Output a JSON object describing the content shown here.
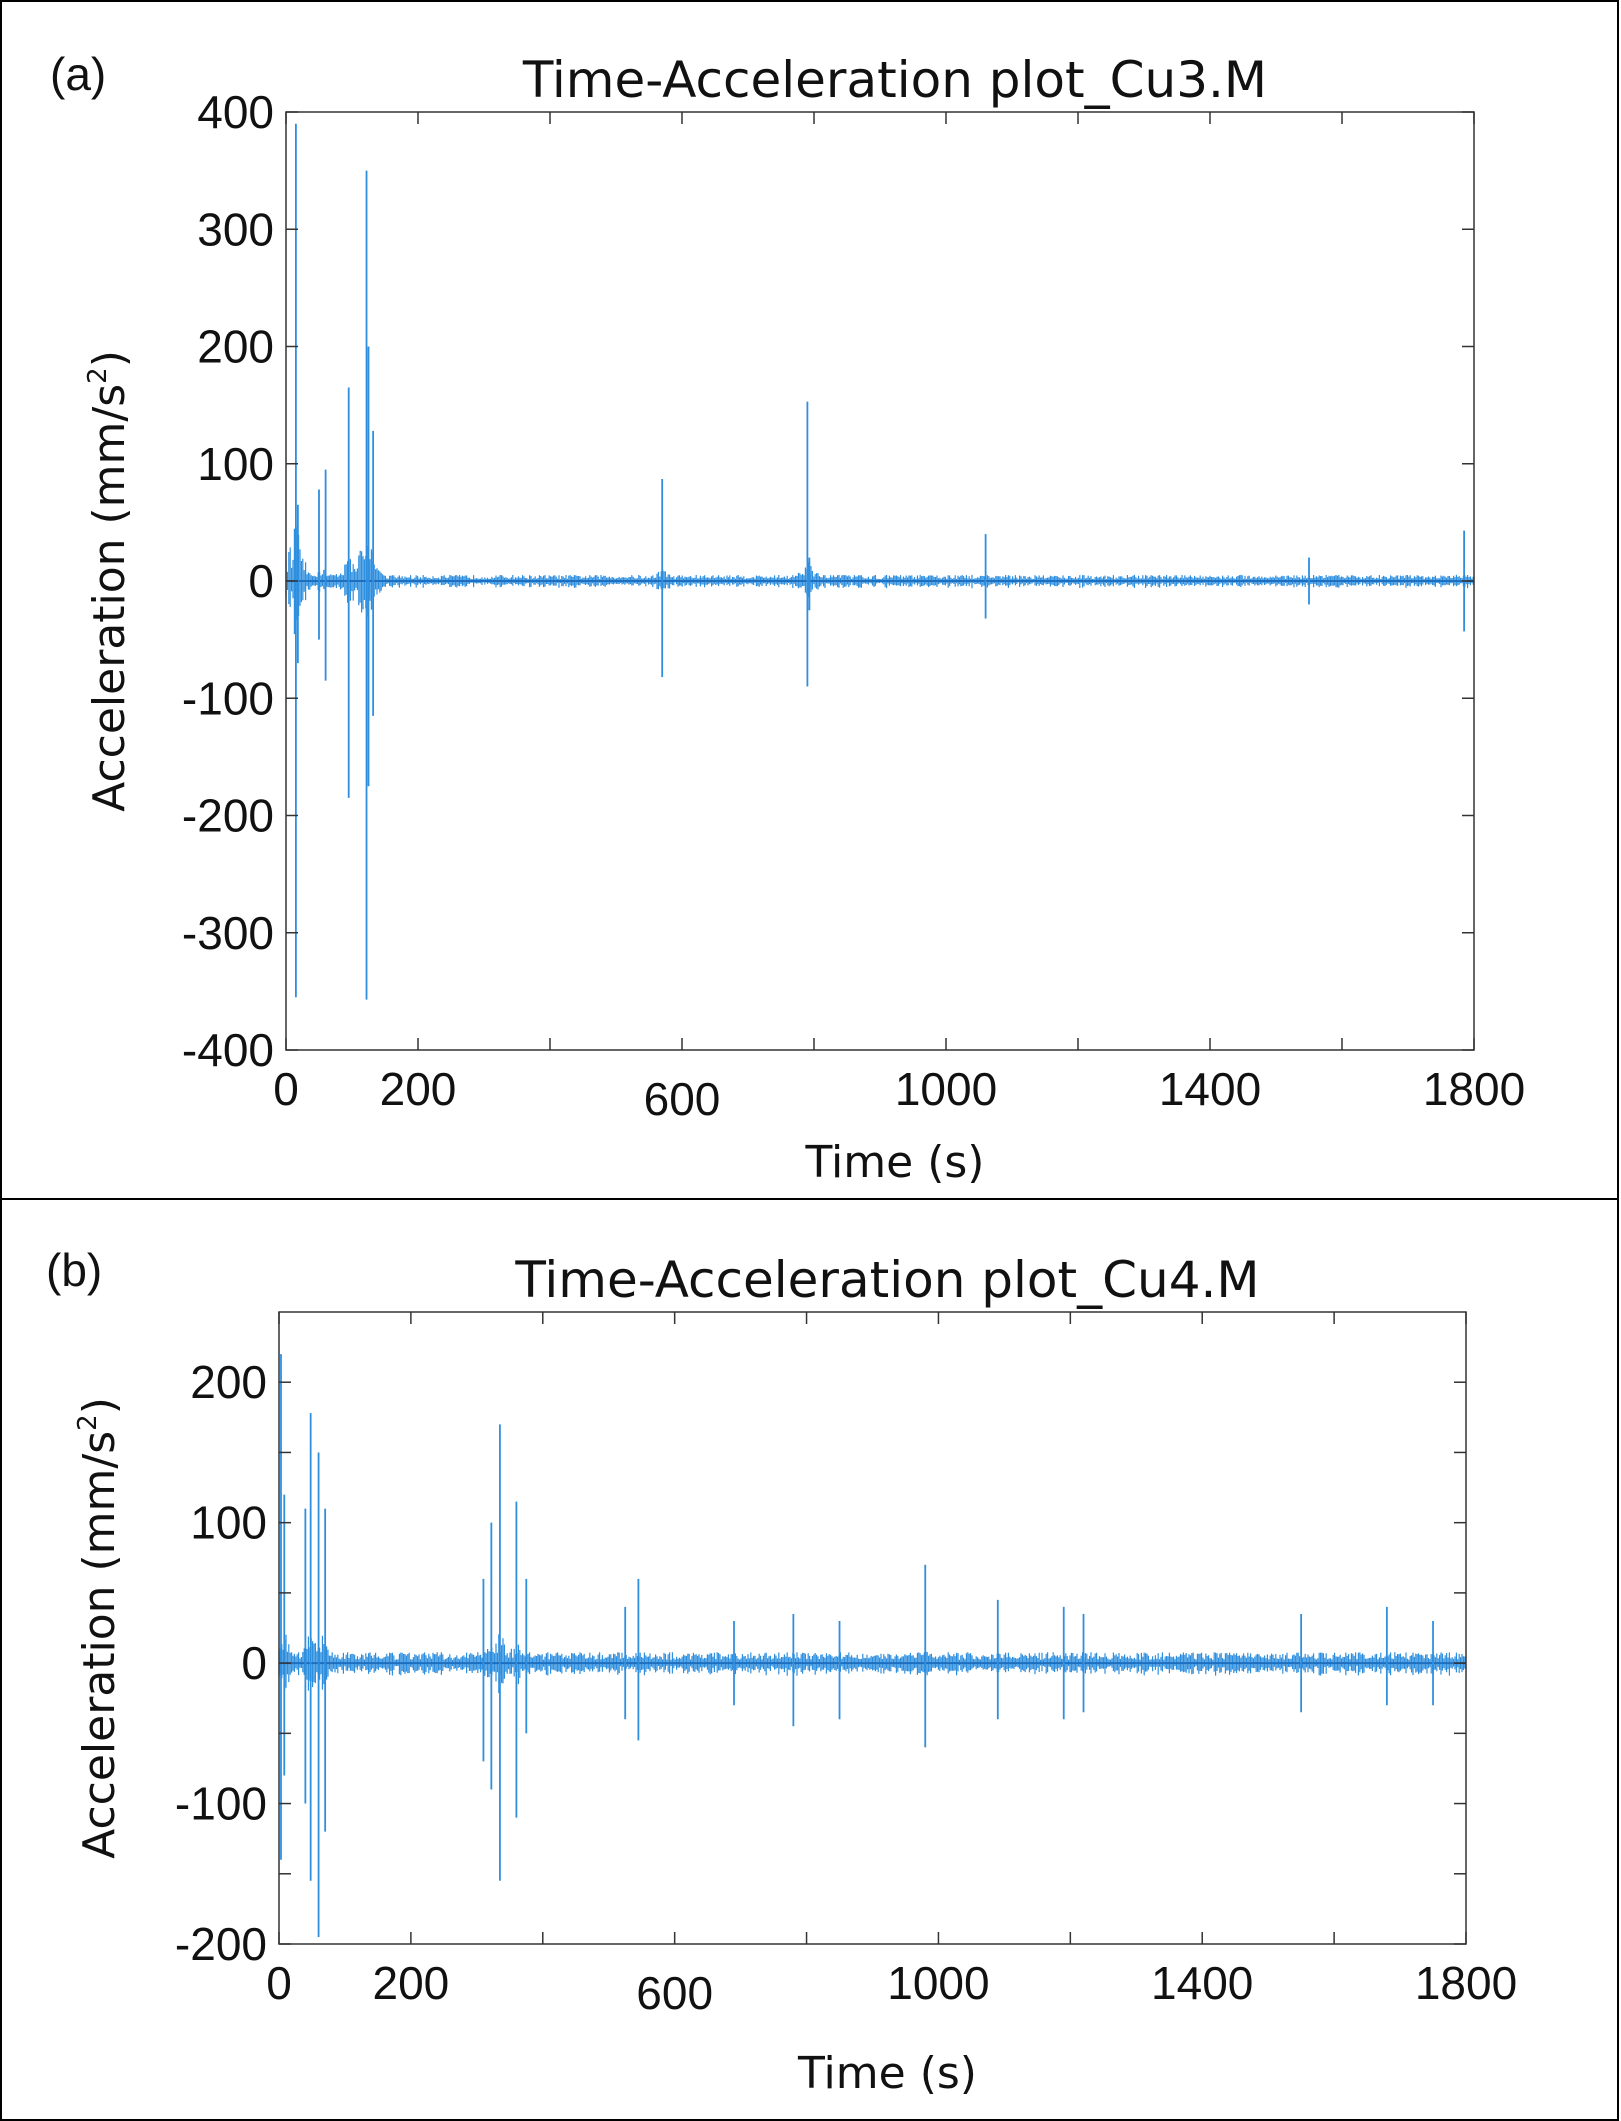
{
  "chart_data": [
    {
      "type": "line",
      "panel_label": "(a)",
      "title": "Time-Acceleration plot_Cu3.M",
      "xlabel": "Time (s)",
      "ylabel": "Acceleration (mm/s",
      "ylabel_sup": "2",
      "ylabel_end": ")",
      "xlim": [
        0,
        1800
      ],
      "ylim": [
        -400,
        400
      ],
      "xticks": [
        0,
        200,
        600,
        1000,
        1400,
        1800
      ],
      "xticks_minor": [
        400,
        800,
        1200,
        1600
      ],
      "yticks": [
        400,
        300,
        200,
        100,
        0,
        -100,
        -200,
        -300,
        -400
      ],
      "color": "#2f8fdf",
      "baseline_amplitude": 4,
      "spikes": [
        {
          "t": 15,
          "max": 390,
          "min": -355
        },
        {
          "t": 18,
          "max": 65,
          "min": -70
        },
        {
          "t": 50,
          "max": 78,
          "min": -50
        },
        {
          "t": 60,
          "max": 95,
          "min": -85
        },
        {
          "t": 95,
          "max": 165,
          "min": -185
        },
        {
          "t": 122,
          "max": 350,
          "min": -357
        },
        {
          "t": 125,
          "max": 200,
          "min": -175
        },
        {
          "t": 132,
          "max": 128,
          "min": -115
        },
        {
          "t": 570,
          "max": 87,
          "min": -82
        },
        {
          "t": 790,
          "max": 153,
          "min": -90
        },
        {
          "t": 793,
          "max": 20,
          "min": -25
        },
        {
          "t": 1060,
          "max": 40,
          "min": -32
        },
        {
          "t": 1550,
          "max": 20,
          "min": -20
        },
        {
          "t": 1785,
          "max": 43,
          "min": -43
        }
      ]
    },
    {
      "type": "line",
      "panel_label": "(b)",
      "title": "Time-Acceleration plot_Cu4.M",
      "xlabel": "Time (s)",
      "ylabel": "Acceleration (mm/s",
      "ylabel_sup": "2",
      "ylabel_end": ")",
      "xlim": [
        0,
        1800
      ],
      "ylim": [
        -200,
        250
      ],
      "xticks": [
        0,
        200,
        600,
        1000,
        1400,
        1800
      ],
      "xticks_minor": [
        400,
        800,
        1200,
        1600
      ],
      "yticks": [
        200,
        100,
        0,
        -100,
        -200
      ],
      "yticks_minor": [
        150,
        50,
        -50,
        -150
      ],
      "color": "#2f8fdf",
      "baseline_amplitude": 6,
      "spikes": [
        {
          "t": 3,
          "max": 220,
          "min": -140
        },
        {
          "t": 8,
          "max": 120,
          "min": -80
        },
        {
          "t": 40,
          "max": 110,
          "min": -100
        },
        {
          "t": 48,
          "max": 178,
          "min": -155
        },
        {
          "t": 60,
          "max": 150,
          "min": -195
        },
        {
          "t": 70,
          "max": 110,
          "min": -120
        },
        {
          "t": 310,
          "max": 60,
          "min": -70
        },
        {
          "t": 322,
          "max": 100,
          "min": -90
        },
        {
          "t": 335,
          "max": 170,
          "min": -155
        },
        {
          "t": 360,
          "max": 115,
          "min": -110
        },
        {
          "t": 375,
          "max": 60,
          "min": -50
        },
        {
          "t": 525,
          "max": 40,
          "min": -40
        },
        {
          "t": 545,
          "max": 60,
          "min": -55
        },
        {
          "t": 690,
          "max": 30,
          "min": -30
        },
        {
          "t": 780,
          "max": 35,
          "min": -45
        },
        {
          "t": 850,
          "max": 30,
          "min": -40
        },
        {
          "t": 980,
          "max": 70,
          "min": -60
        },
        {
          "t": 1090,
          "max": 45,
          "min": -40
        },
        {
          "t": 1190,
          "max": 40,
          "min": -40
        },
        {
          "t": 1220,
          "max": 35,
          "min": -35
        },
        {
          "t": 1550,
          "max": 35,
          "min": -35
        },
        {
          "t": 1680,
          "max": 40,
          "min": -30
        },
        {
          "t": 1750,
          "max": 30,
          "min": -30
        }
      ]
    }
  ]
}
